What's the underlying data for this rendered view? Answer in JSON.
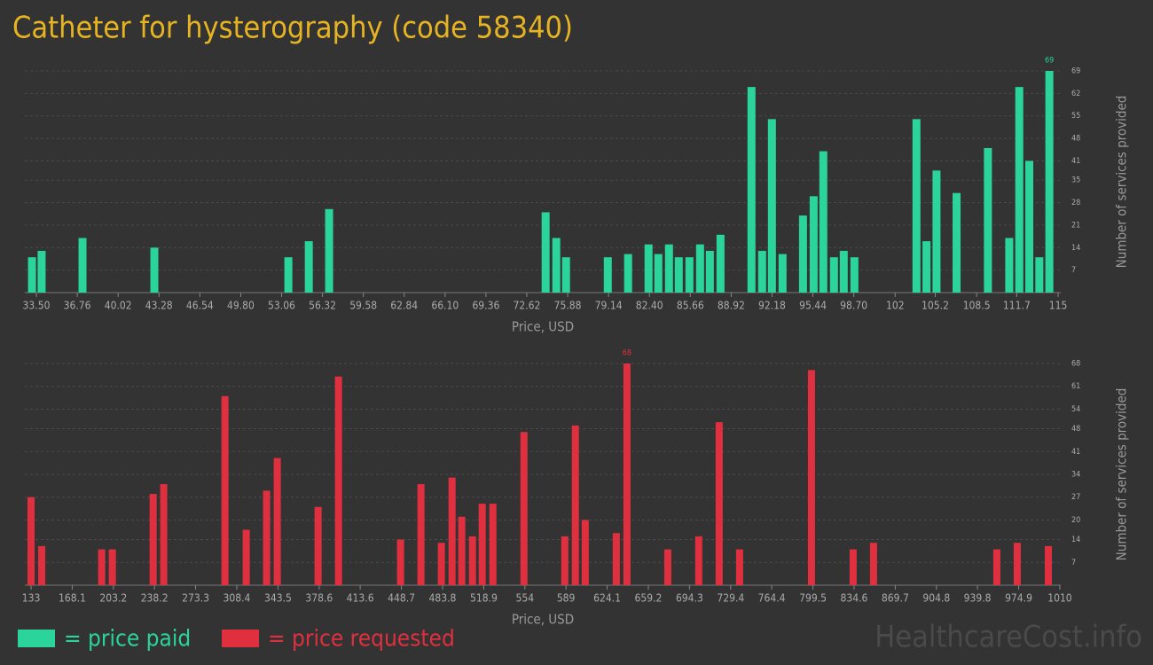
{
  "title": "Catheter for hysterography (code 58340)",
  "watermark": "HealthcareCost.info",
  "chart_data": [
    {
      "type": "bar",
      "x_label": "Price, USD",
      "y_label": "Number of services provided",
      "x": [
        33.15,
        33.92,
        37.18,
        42.91,
        53.6,
        55.23,
        56.85,
        74.12,
        74.97,
        75.75,
        79.08,
        80.7,
        82.33,
        83.11,
        83.96,
        84.74,
        85.59,
        86.44,
        87.22,
        88.07,
        90.54,
        91.39,
        92.17,
        93.02,
        94.65,
        95.5,
        96.27,
        97.12,
        97.9,
        98.75,
        103.7,
        104.5,
        105.3,
        106.9,
        109.4,
        111.1,
        111.9,
        112.7,
        113.5,
        114.3
      ],
      "series": [
        {
          "name": "= price paid",
          "color": "#2ad49a",
          "values": [
            11,
            13,
            17,
            14,
            11,
            16,
            26,
            25,
            17,
            11,
            11,
            12,
            15,
            12,
            15,
            11,
            11,
            15,
            13,
            18,
            64,
            13,
            54,
            12,
            24,
            30,
            44,
            11,
            13,
            11,
            54,
            16,
            38,
            31,
            45,
            17,
            64,
            41,
            11,
            69
          ]
        }
      ],
      "xlim": [
        32.58,
        115.21
      ],
      "ylim": [
        0,
        69
      ],
      "xticks": [
        {
          "value": 33.5,
          "label": "33.50"
        },
        36.76,
        40.02,
        43.28,
        46.54,
        {
          "value": 49.8,
          "label": "49.80"
        },
        53.06,
        56.32,
        59.58,
        62.84,
        {
          "value": 66.1,
          "label": "66.10"
        },
        69.36,
        72.62,
        75.88,
        79.14,
        {
          "value": 82.4,
          "label": "82.40"
        },
        85.66,
        88.92,
        92.18,
        95.44,
        {
          "value": 98.7,
          "label": "98.70"
        },
        102,
        105.2,
        108.5,
        111.7,
        115
      ],
      "yticks": [
        7,
        14,
        21,
        28,
        35,
        41,
        48,
        55,
        62,
        69
      ],
      "grid": true
    },
    {
      "type": "bar",
      "x_label": "Price, USD",
      "y_label": "Number of services provided",
      "x": [
        133.0,
        142.1,
        193.2,
        202.3,
        237.1,
        246.1,
        298.3,
        316.4,
        333.8,
        342.9,
        377.7,
        395.1,
        448.0,
        465.4,
        482.8,
        491.9,
        500.2,
        509.3,
        517.6,
        526.7,
        553.2,
        588.0,
        597.0,
        605.4,
        631.9,
        641.0,
        675.8,
        702.2,
        719.6,
        737.0,
        798.3,
        833.8,
        851.2,
        956.3,
        973.7,
        1000.2
      ],
      "series": [
        {
          "name": "= price requested",
          "color": "#e0303f",
          "values": [
            27,
            12,
            11,
            11,
            28,
            31,
            58,
            17,
            29,
            39,
            24,
            64,
            14,
            31,
            13,
            33,
            21,
            15,
            25,
            25,
            47,
            15,
            49,
            20,
            16,
            68,
            11,
            15,
            50,
            11,
            66,
            11,
            13,
            11,
            13,
            12
          ]
        }
      ],
      "xlim": [
        127.7,
        1010.8
      ],
      "ylim": [
        0,
        68
      ],
      "xticks": [
        133,
        168.1,
        203.2,
        238.2,
        273.3,
        308.4,
        343.5,
        378.6,
        413.6,
        448.7,
        483.8,
        518.9,
        554,
        589,
        624.1,
        659.2,
        694.3,
        729.4,
        764.4,
        799.5,
        834.6,
        869.7,
        904.8,
        939.8,
        974.9,
        1010
      ],
      "yticks": [
        7,
        14,
        20,
        27,
        34,
        41,
        48,
        54,
        61,
        68
      ],
      "grid": true
    }
  ]
}
